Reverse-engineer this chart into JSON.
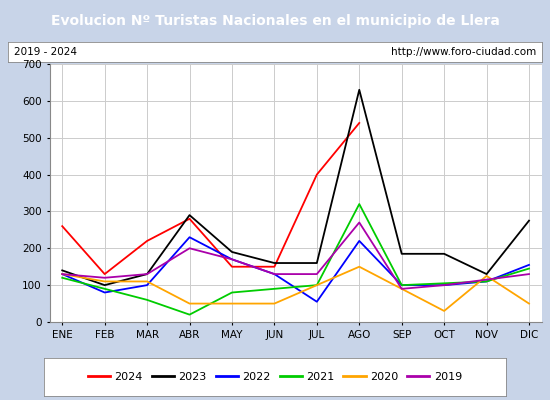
{
  "title": "Evolucion Nº Turistas Nacionales en el municipio de Llera",
  "subtitle_left": "2019 - 2024",
  "subtitle_right": "http://www.foro-ciudad.com",
  "months": [
    "ENE",
    "FEB",
    "MAR",
    "ABR",
    "MAY",
    "JUN",
    "JUL",
    "AGO",
    "SEP",
    "OCT",
    "NOV",
    "DIC"
  ],
  "series": {
    "2024": [
      260,
      130,
      220,
      280,
      150,
      150,
      400,
      540,
      null,
      null,
      null,
      null
    ],
    "2023": [
      140,
      100,
      130,
      290,
      190,
      160,
      160,
      630,
      185,
      185,
      130,
      275
    ],
    "2022": [
      130,
      80,
      100,
      230,
      170,
      130,
      55,
      220,
      100,
      100,
      110,
      155
    ],
    "2021": [
      120,
      90,
      60,
      20,
      80,
      90,
      100,
      320,
      100,
      105,
      110,
      145
    ],
    "2020": [
      130,
      110,
      110,
      50,
      50,
      50,
      100,
      150,
      90,
      30,
      125,
      50
    ],
    "2019": [
      130,
      120,
      130,
      200,
      170,
      130,
      130,
      270,
      90,
      100,
      115,
      130
    ]
  },
  "colors": {
    "2024": "#ff0000",
    "2023": "#000000",
    "2022": "#0000ff",
    "2021": "#00cc00",
    "2020": "#ffa500",
    "2019": "#aa00aa"
  },
  "ylim": [
    0,
    700
  ],
  "yticks": [
    0,
    100,
    200,
    300,
    400,
    500,
    600,
    700
  ],
  "title_bg": "#4d7ebf",
  "title_color": "#ffffff",
  "outer_bg": "#c8d4e8",
  "plot_bg": "#ffffff",
  "grid_color": "#cccccc",
  "legend_order": [
    "2024",
    "2023",
    "2022",
    "2021",
    "2020",
    "2019"
  ],
  "title_fontsize": 10,
  "subtitle_fontsize": 7.5,
  "tick_fontsize": 7.5,
  "legend_fontsize": 8
}
